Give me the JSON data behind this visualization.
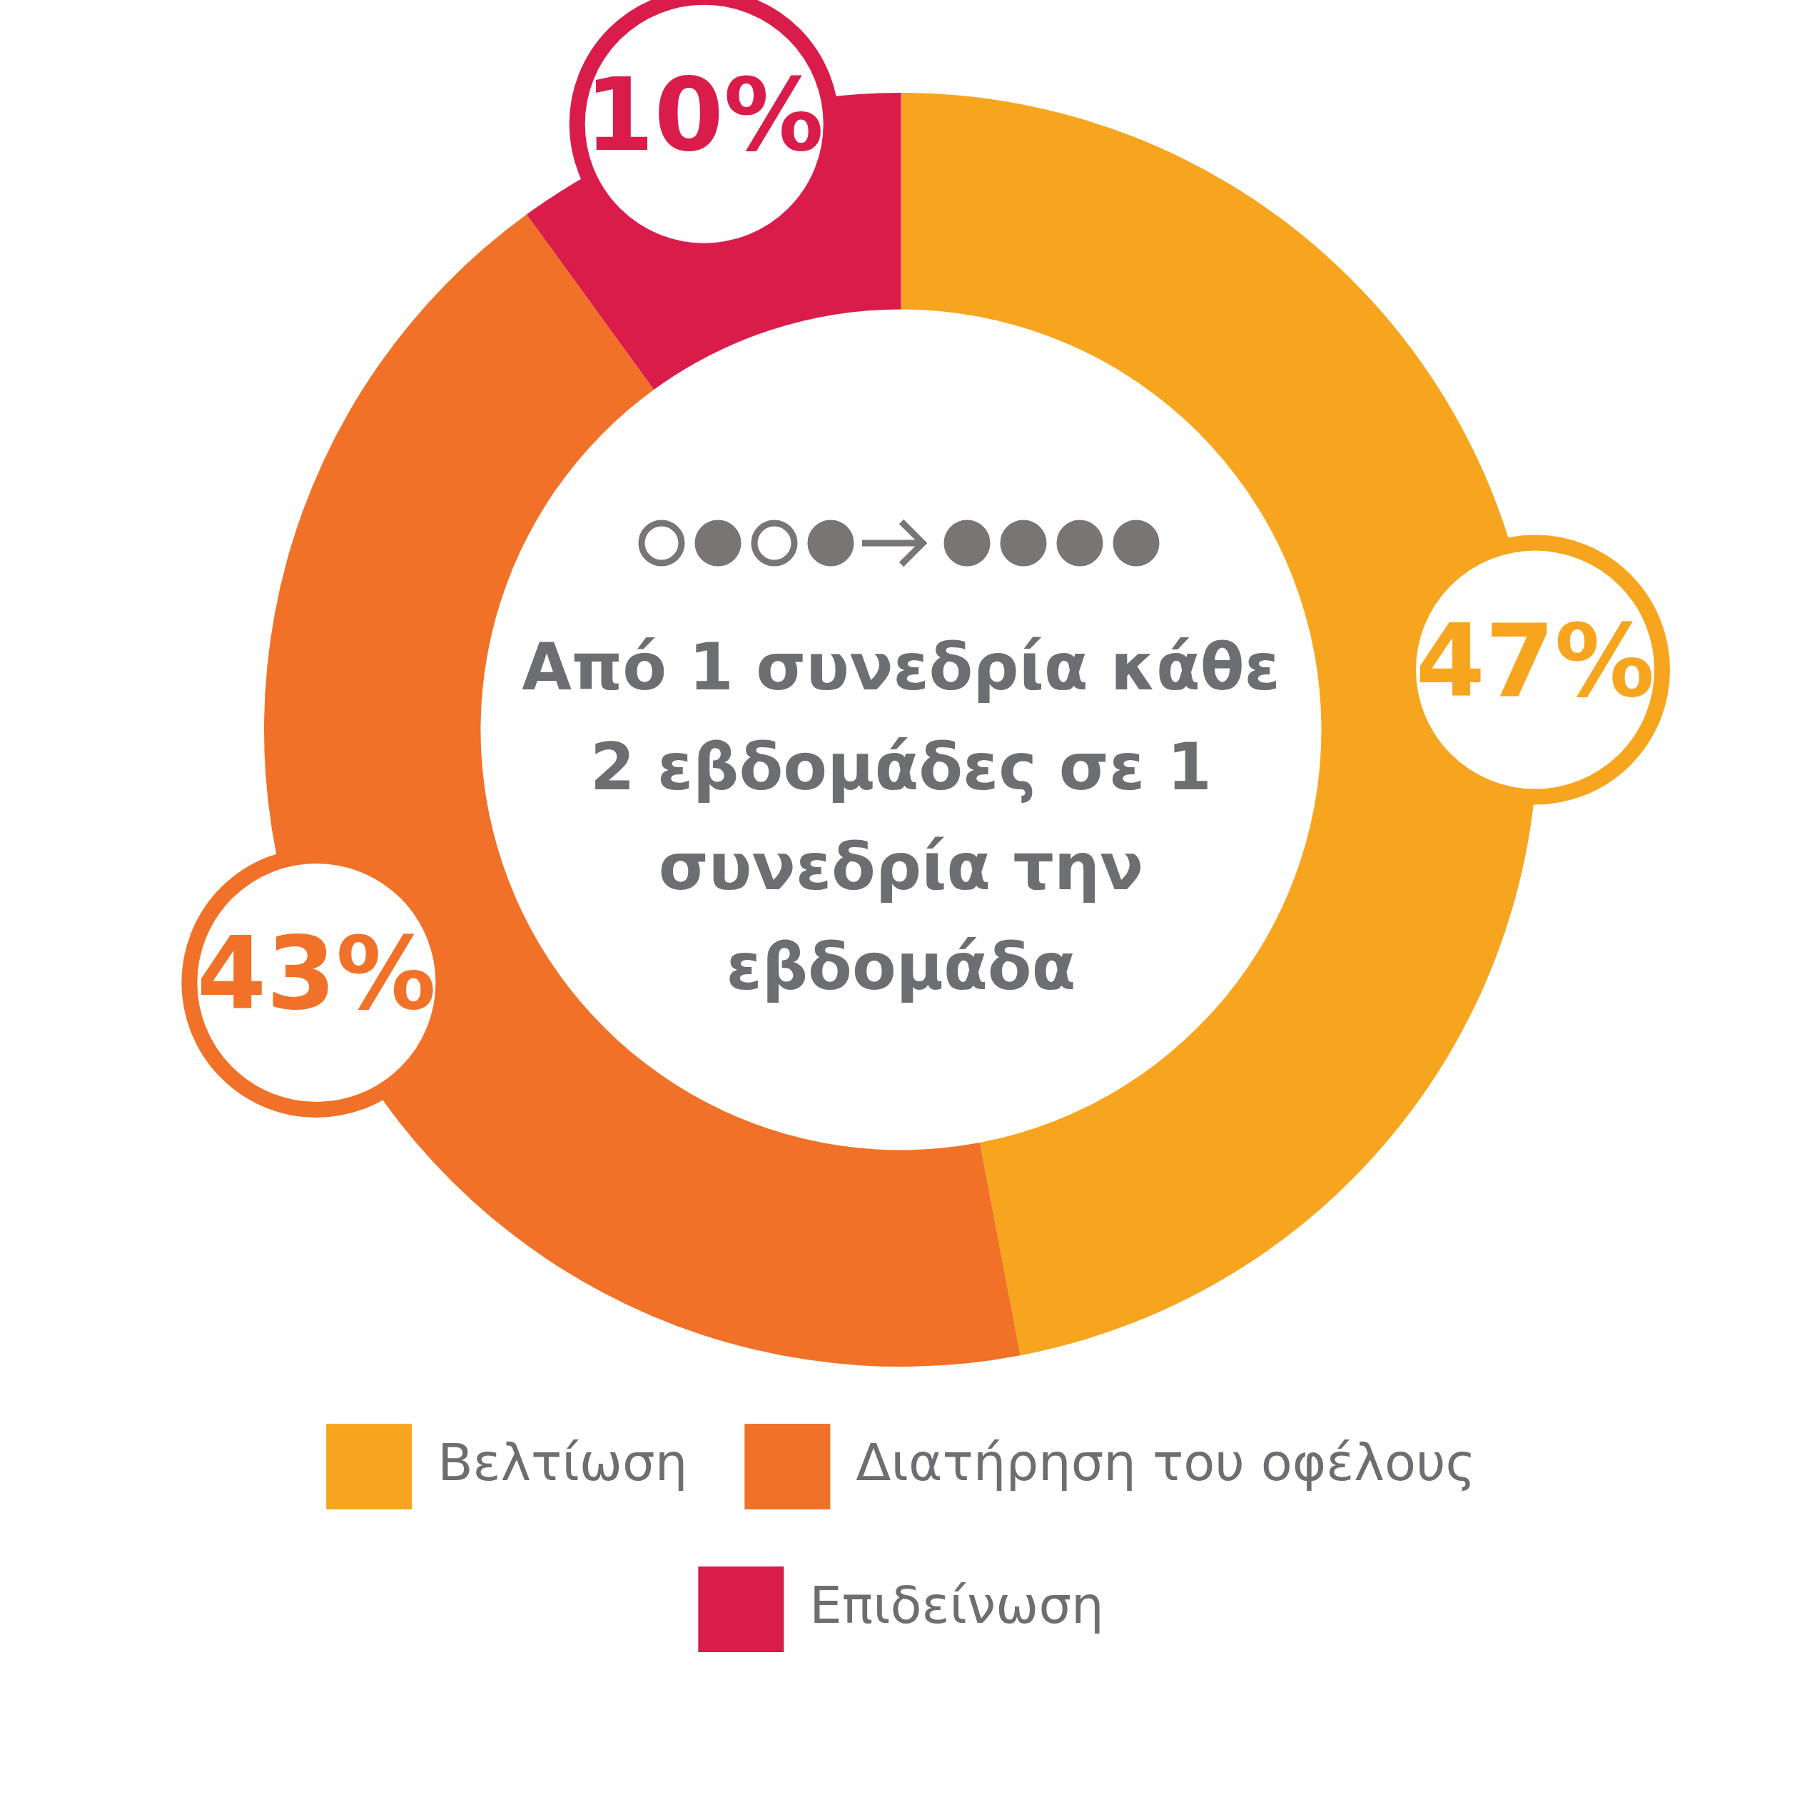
{
  "chart_data": {
    "type": "donut",
    "categories": [
      "Βελτίωση",
      "Διατήρηση του οφέλους",
      "Επιδείνωση"
    ],
    "values": [
      47,
      43,
      10
    ],
    "colors": [
      "#f7a51e",
      "#f07127",
      "#da1c4a"
    ],
    "value_labels": [
      "47%",
      "43%",
      "10%"
    ],
    "annotations": [
      "Από 1 συνεδρία κάθε 2 εβδομάδες σε 1 συνεδρία την εβδομάδα"
    ],
    "legend": "bottom"
  }
}
